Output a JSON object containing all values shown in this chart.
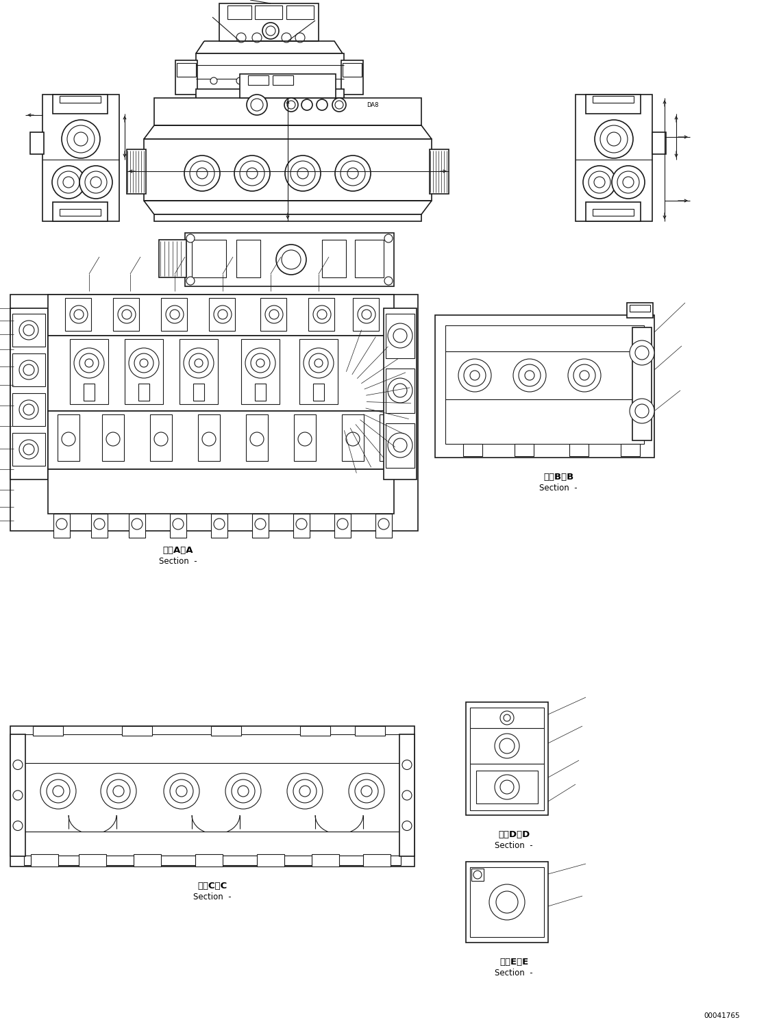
{
  "background_color": "#ffffff",
  "figsize": [
    11.37,
    14.92
  ],
  "dpi": 100,
  "line_color": "#1a1a1a",
  "labels": {
    "section_aa_kanji": "断面A－A",
    "section_aa_eng": "Section  -",
    "section_bb_kanji": "断面B－B",
    "section_bb_eng": "Section  -",
    "section_cc_kanji": "断面C－C",
    "section_cc_eng": "Section  -",
    "section_dd_kanji": "断面D－D",
    "section_dd_eng": "Section  -",
    "section_ee_kanji": "断面E－E",
    "section_ee_eng": "Section  -",
    "part_number": "00041765"
  },
  "font_kanji": 9.5,
  "font_eng": 8.5,
  "font_part": 7.5
}
